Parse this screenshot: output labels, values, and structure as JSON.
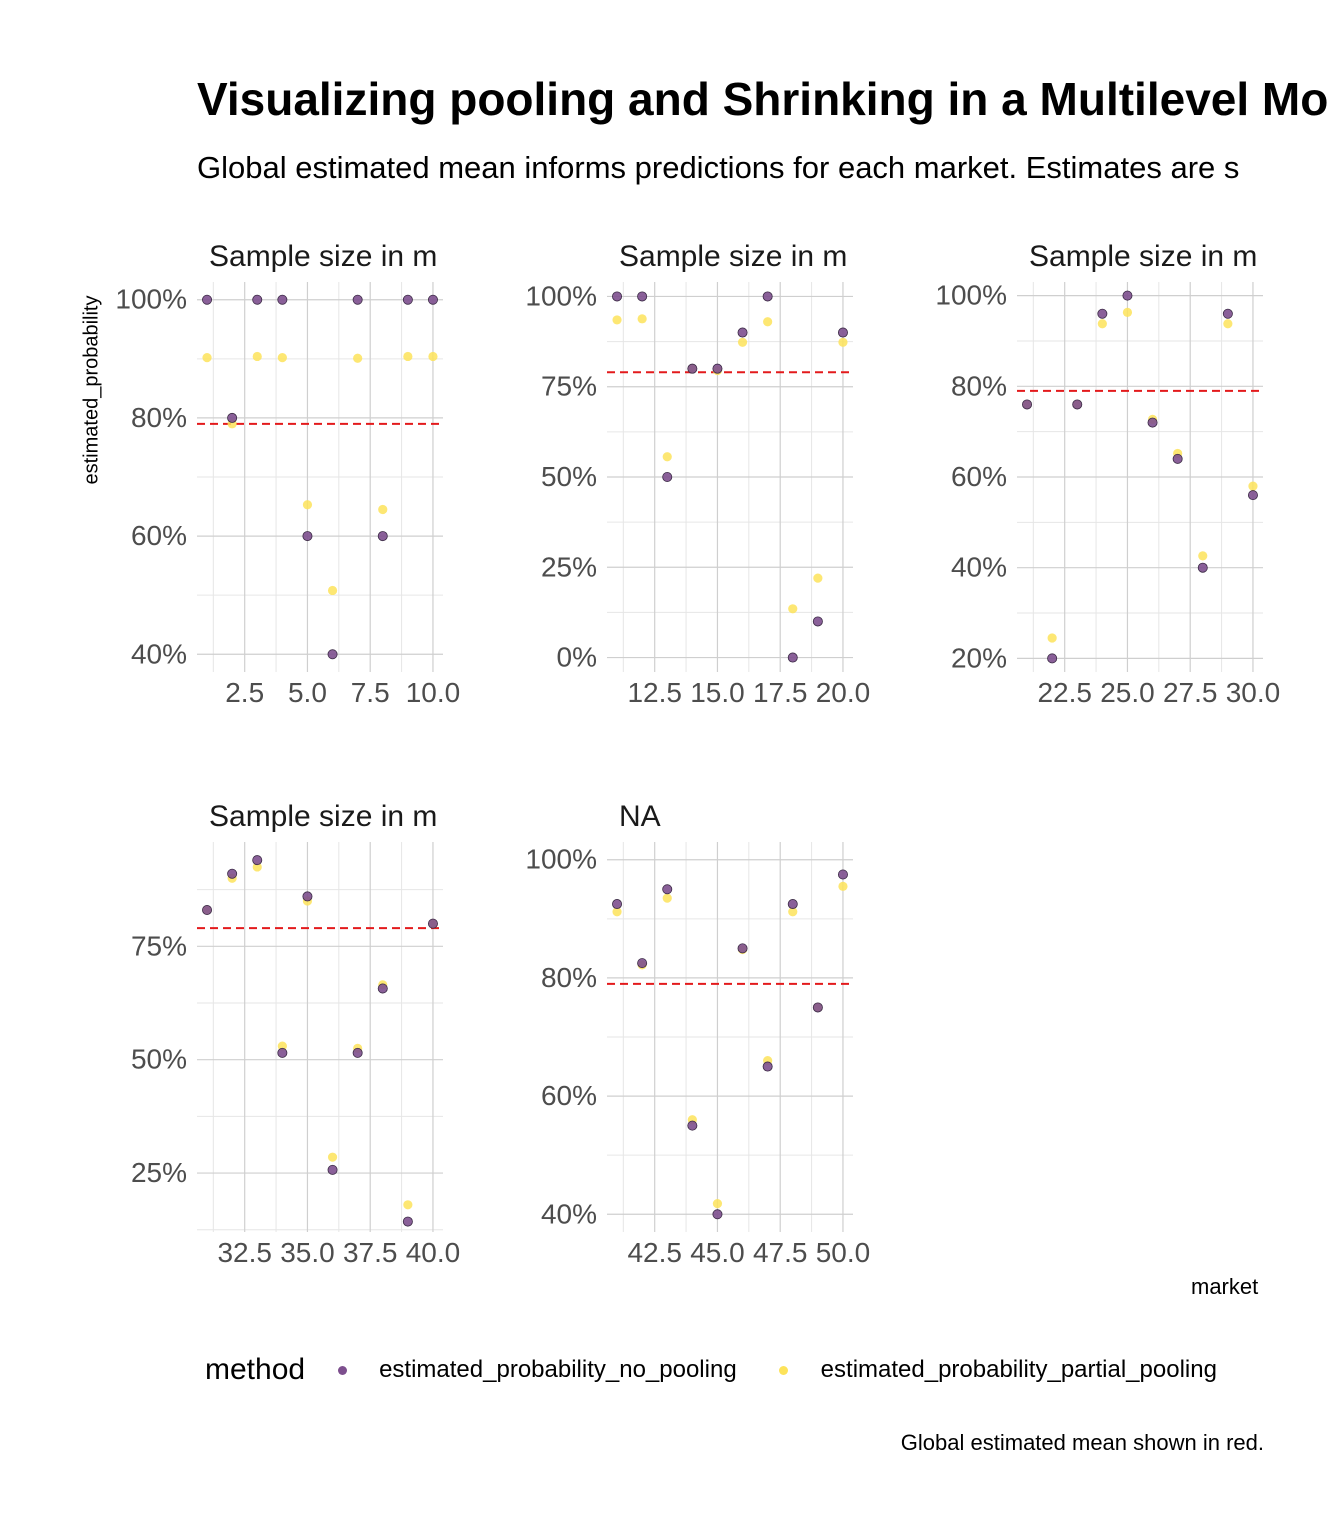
{
  "title": "Visualizing pooling and Shrinking in a Multilevel Mo",
  "subtitle": "Global estimated mean informs predictions for each market. Estimates are s",
  "caption": "Global estimated mean shown in red.",
  "colors": {
    "no_pooling": "#7d4f8e",
    "partial_pooling": "#fde35a",
    "global_mean": "#e31a1c"
  },
  "chart_data": {
    "type": "scatter",
    "xlabel": "market",
    "ylabel": "estimated_probability",
    "grid": true,
    "legend": {
      "title": "method",
      "placement": "bottom",
      "entries": [
        "estimated_probability_no_pooling",
        "estimated_probability_partial_pooling"
      ]
    },
    "global_mean": 0.79,
    "panels": [
      {
        "title": "Sample size in m",
        "xlim": [
          0.6,
          10.4
        ],
        "ylim": [
          0.37,
          1.03
        ],
        "xticks": [
          2.5,
          5.0,
          7.5,
          10.0
        ],
        "xtick_labels": [
          "2.5",
          "5.0",
          "7.5",
          "10.0"
        ],
        "yticks": [
          0.4,
          0.6,
          0.8,
          1.0
        ],
        "ytick_labels": [
          "40%",
          "60%",
          "80%",
          "100%"
        ],
        "x": [
          1,
          2,
          3,
          4,
          5,
          6,
          7,
          8,
          9,
          10
        ],
        "series": [
          {
            "name": "estimated_probability_no_pooling",
            "values": [
              1.0,
              0.8,
              1.0,
              1.0,
              0.6,
              0.4,
              1.0,
              0.6,
              1.0,
              1.0
            ]
          },
          {
            "name": "estimated_probability_partial_pooling",
            "values": [
              0.902,
              0.79,
              0.904,
              0.902,
              0.653,
              0.508,
              0.901,
              0.645,
              0.904,
              0.904
            ]
          }
        ]
      },
      {
        "title": "Sample size in m",
        "xlim": [
          10.6,
          20.4
        ],
        "ylim": [
          -0.04,
          1.04
        ],
        "xticks": [
          12.5,
          15.0,
          17.5,
          20.0
        ],
        "xtick_labels": [
          "12.5",
          "15.0",
          "17.5",
          "20.0"
        ],
        "yticks": [
          0.0,
          0.25,
          0.5,
          0.75,
          1.0
        ],
        "ytick_labels": [
          "0%",
          "25%",
          "50%",
          "75%",
          "100%"
        ],
        "x": [
          11,
          12,
          13,
          14,
          15,
          16,
          17,
          18,
          19,
          20
        ],
        "series": [
          {
            "name": "estimated_probability_no_pooling",
            "values": [
              1.0,
              1.0,
              0.5,
              0.8,
              0.8,
              0.9,
              1.0,
              0.0,
              0.1,
              0.9
            ]
          },
          {
            "name": "estimated_probability_partial_pooling",
            "values": [
              0.935,
              0.938,
              0.556,
              0.8,
              0.795,
              0.873,
              0.93,
              0.135,
              0.22,
              0.873
            ]
          }
        ]
      },
      {
        "title": "Sample size in m",
        "xlim": [
          20.6,
          30.4
        ],
        "ylim": [
          0.17,
          1.03
        ],
        "xticks": [
          22.5,
          25.0,
          27.5,
          30.0
        ],
        "xtick_labels": [
          "22.5",
          "25.0",
          "27.5",
          "30.0"
        ],
        "yticks": [
          0.2,
          0.4,
          0.6,
          0.8,
          1.0
        ],
        "ytick_labels": [
          "20%",
          "40%",
          "60%",
          "80%",
          "100%"
        ],
        "x": [
          21,
          22,
          23,
          24,
          25,
          26,
          27,
          28,
          29,
          30
        ],
        "series": [
          {
            "name": "estimated_probability_no_pooling",
            "values": [
              0.76,
              0.2,
              0.76,
              0.96,
              1.0,
              0.72,
              0.64,
              0.4,
              0.96,
              0.56
            ]
          },
          {
            "name": "estimated_probability_partial_pooling",
            "values": [
              0.76,
              0.245,
              0.76,
              0.938,
              0.963,
              0.727,
              0.652,
              0.426,
              0.938,
              0.58
            ]
          }
        ]
      },
      {
        "title": "Sample size in m",
        "xlim": [
          30.6,
          40.4
        ],
        "ylim": [
          0.12,
          0.98
        ],
        "xticks": [
          32.5,
          35.0,
          37.5,
          40.0
        ],
        "xtick_labels": [
          "32.5",
          "35.0",
          "37.5",
          "40.0"
        ],
        "yticks": [
          0.25,
          0.5,
          0.75
        ],
        "ytick_labels": [
          "25%",
          "50%",
          "75%"
        ],
        "x": [
          31,
          32,
          33,
          34,
          35,
          36,
          37,
          38,
          39,
          40
        ],
        "series": [
          {
            "name": "estimated_probability_no_pooling",
            "values": [
              0.83,
              0.91,
              0.94,
              0.515,
              0.86,
              0.257,
              0.515,
              0.657,
              0.143,
              0.8
            ]
          },
          {
            "name": "estimated_probability_partial_pooling",
            "values": [
              0.83,
              0.9,
              0.925,
              0.53,
              0.85,
              0.285,
              0.525,
              0.665,
              0.18,
              0.8
            ]
          }
        ]
      },
      {
        "title": "NA",
        "xlim": [
          40.6,
          50.4
        ],
        "ylim": [
          0.37,
          1.03
        ],
        "xticks": [
          42.5,
          45.0,
          47.5,
          50.0
        ],
        "xtick_labels": [
          "42.5",
          "45.0",
          "47.5",
          "50.0"
        ],
        "yticks": [
          0.4,
          0.6,
          0.8,
          1.0
        ],
        "ytick_labels": [
          "40%",
          "60%",
          "80%",
          "100%"
        ],
        "x": [
          41,
          42,
          43,
          44,
          45,
          46,
          47,
          48,
          49,
          50
        ],
        "series": [
          {
            "name": "estimated_probability_no_pooling",
            "values": [
              0.925,
              0.825,
              0.95,
              0.55,
              0.4,
              0.85,
              0.65,
              0.925,
              0.75,
              0.975
            ]
          },
          {
            "name": "estimated_probability_partial_pooling",
            "values": [
              0.912,
              0.822,
              0.935,
              0.56,
              0.418,
              0.848,
              0.66,
              0.912,
              0.75,
              0.955
            ]
          }
        ]
      }
    ]
  }
}
